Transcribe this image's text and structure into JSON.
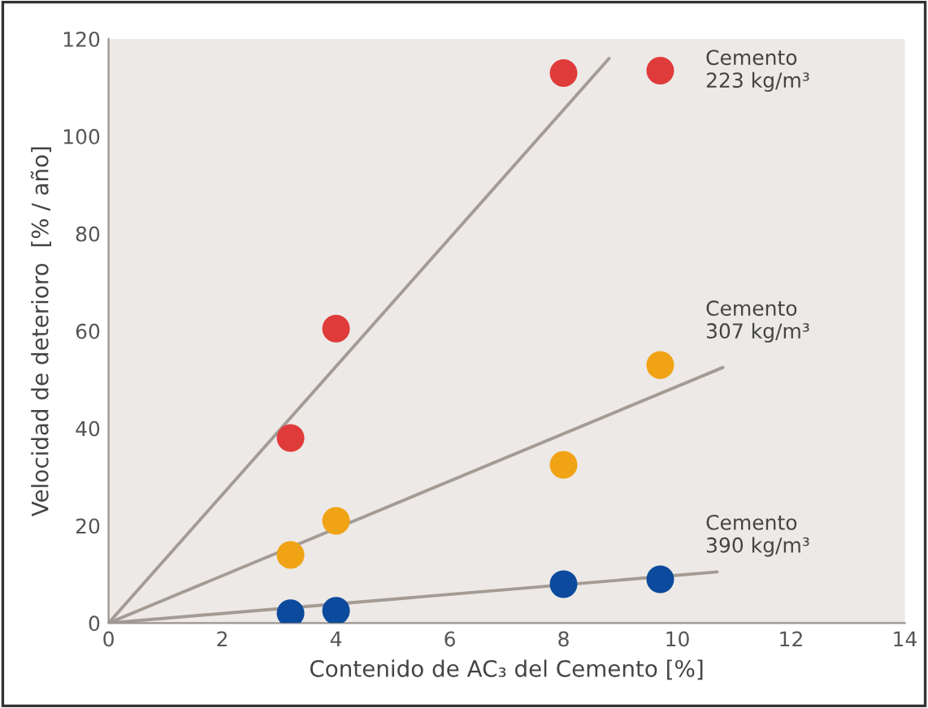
{
  "chart_data": {
    "type": "scatter",
    "xlabel": "Contenido de AC₃ del Cemento [%]",
    "ylabel": "Velocidad de deterioro  [% / año]",
    "xlim": [
      0,
      14
    ],
    "xticks": [
      0,
      2,
      4,
      6,
      8,
      10,
      12,
      14
    ],
    "ylim": [
      0,
      120
    ],
    "yticks": [
      0,
      20,
      40,
      60,
      80,
      100,
      120
    ],
    "grid": false,
    "legend": false,
    "marker": "circle",
    "series": [
      {
        "type": "line",
        "marker": "none",
        "color": "#a39b94",
        "x": [
          0,
          8.8
        ],
        "values": [
          0,
          116
        ]
      },
      {
        "type": "line",
        "marker": "none",
        "color": "#a39b94",
        "x": [
          0,
          10.8
        ],
        "values": [
          0,
          52.5
        ]
      },
      {
        "type": "line",
        "marker": "none",
        "color": "#a39b94",
        "x": [
          0,
          10.7
        ],
        "values": [
          0,
          10.5
        ]
      },
      {
        "name": "Cemento\n223 kg/m³",
        "color": "#e03b3b",
        "x": [
          3.2,
          4,
          8,
          9.7
        ],
        "values": [
          38,
          60.5,
          113,
          113.5
        ]
      },
      {
        "name": "Cemento\n307 kg/m³",
        "color": "#f0a314",
        "x": [
          3.2,
          4,
          8,
          9.7
        ],
        "values": [
          14,
          21,
          32.5,
          53
        ]
      },
      {
        "name": "Cemento\n390 kg/m³",
        "color": "#0b4a9c",
        "x": [
          3.2,
          4,
          8,
          9.7
        ],
        "values": [
          2,
          2.5,
          8,
          9
        ]
      }
    ]
  }
}
